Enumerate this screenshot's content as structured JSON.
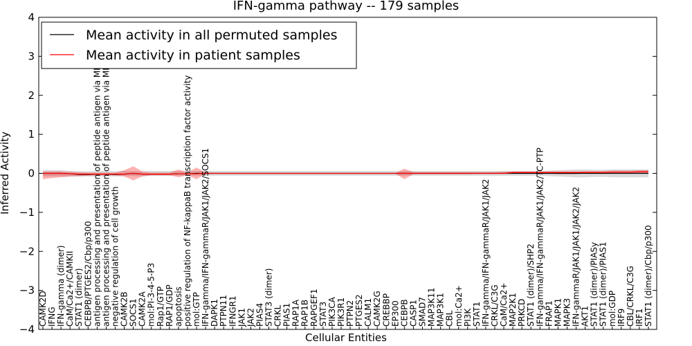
{
  "chart_data": {
    "type": "line",
    "title": "IFN-gamma pathway -- 179 samples",
    "xlabel": "Cellular Entities",
    "ylabel": "Inferred Activity",
    "ylim": [
      -4,
      4
    ],
    "yticks": [
      -4,
      -3,
      -2,
      -1,
      0,
      1,
      2,
      3,
      4
    ],
    "legend_position": "top-left",
    "categories": [
      "CAMK2D",
      "IFNG",
      "IFN-gamma (dimer)",
      "CaM/Ca2+/CAMKII",
      "STAT1 (dimer)",
      "CEBPB/PTGES2/Cbp/p300",
      "antigen processing and presentation of peptide antigen via MHC class I",
      "antigen processing and presentation of peptide antigen via MHC class II",
      "negative regulation of cell growth",
      "CAMK2B",
      "SOCS1",
      "CAMK2A",
      "mol:PI-3-4-5-P3",
      "Rap1/GTP",
      "RAP1/GDP",
      "apoptosis",
      "positive regulation of NF-kappaB transcription factor activity",
      "mol:GTP",
      "IFN-gamma/IFN-gammaR/JAK1/JAK2/SOCS1",
      "DAPK1",
      "PTPN11",
      "IFNGR1",
      "JAK1",
      "JAK2",
      "PIAS4",
      "STAT3 (dimer)",
      "CRKL",
      "PIAS1",
      "RAP1A",
      "RAP1B",
      "RAPGEF1",
      "STAT3",
      "PIK3CA",
      "PIK3R1",
      "PTPN2",
      "PTGES2",
      "CALM1",
      "CAMK2G",
      "CREBBP",
      "EP300",
      "CEBPB",
      "CASP1",
      "SMAD7",
      "MAP3K11",
      "MAP3K1",
      "CBL",
      "mol:Ca2+",
      "PI3K",
      "STAT1",
      "IFN-gamma/IFN-gammaR/JAK1/JAK2",
      "CRKL/C3G",
      "CaM/Ca2+",
      "MAP2K1",
      "PRKCD",
      "STAT1 (dimer)/SHP2",
      "IFN-gamma/IFN-gammaR/JAK1/JAK2/TC-PTP",
      "FRAP1",
      "MAPK1",
      "MAPK3",
      "IFN-gammaR/JAK1/JAK1/JAK2/JAK2",
      "AKT1",
      "STAT1 (dimer)/PIASy",
      "STAT1 (dimer)/PIAS1",
      "mol:GDP",
      "IRF9",
      "CBL/CRKL/C3G",
      "IRF1",
      "STAT1 (dimer)/Cbp/p300"
    ],
    "series": [
      {
        "name": "Mean activity in all permuted samples",
        "color": "#000000",
        "values": [
          0.0,
          0.0,
          0.0,
          -0.01,
          -0.03,
          -0.03,
          -0.02,
          -0.02,
          -0.03,
          -0.02,
          0.0,
          -0.02,
          -0.02,
          -0.02,
          -0.02,
          -0.01,
          -0.01,
          0.0,
          0.0,
          0.0,
          0.0,
          0.0,
          0.0,
          0.0,
          0.0,
          0.0,
          0.0,
          0.0,
          0.0,
          0.0,
          0.0,
          0.0,
          0.0,
          0.0,
          0.0,
          0.0,
          0.0,
          0.0,
          0.0,
          0.0,
          0.0,
          0.0,
          0.0,
          0.0,
          0.0,
          0.0,
          0.0,
          0.0,
          0.0,
          0.0,
          0.0,
          0.0,
          0.0,
          0.0,
          0.0,
          0.0,
          0.0,
          0.0,
          0.0,
          0.0,
          0.0,
          0.0,
          0.0,
          0.0,
          0.0,
          0.0,
          0.0,
          0.0
        ],
        "band_lower": [
          -0.08,
          -0.08,
          -0.08,
          -0.08,
          -0.08,
          -0.08,
          -0.08,
          -0.08,
          -0.08,
          -0.07,
          -0.07,
          -0.07,
          -0.06,
          -0.06,
          -0.06,
          -0.06,
          -0.06,
          -0.06,
          -0.06,
          -0.06,
          -0.06,
          -0.06,
          -0.06,
          -0.06,
          -0.06,
          -0.06,
          -0.06,
          -0.06,
          -0.06,
          -0.06,
          -0.06,
          -0.06,
          -0.06,
          -0.06,
          -0.06,
          -0.06,
          -0.06,
          -0.06,
          -0.06,
          -0.06,
          -0.06,
          -0.06,
          -0.06,
          -0.06,
          -0.06,
          -0.06,
          -0.06,
          -0.06,
          -0.06,
          -0.06,
          -0.06,
          -0.06,
          -0.06,
          -0.06,
          -0.06,
          -0.06,
          -0.07,
          -0.08,
          -0.09,
          -0.1,
          -0.1,
          -0.09,
          -0.09,
          -0.1,
          -0.1,
          -0.1,
          -0.1,
          -0.1
        ],
        "band_upper": [
          0.08,
          0.08,
          0.08,
          0.06,
          0.05,
          0.05,
          0.06,
          0.06,
          0.05,
          0.06,
          0.06,
          0.05,
          0.06,
          0.06,
          0.06,
          0.06,
          0.06,
          0.06,
          0.06,
          0.06,
          0.06,
          0.06,
          0.06,
          0.06,
          0.06,
          0.06,
          0.06,
          0.06,
          0.06,
          0.06,
          0.06,
          0.06,
          0.06,
          0.06,
          0.06,
          0.06,
          0.06,
          0.06,
          0.06,
          0.06,
          0.06,
          0.06,
          0.06,
          0.06,
          0.06,
          0.06,
          0.06,
          0.06,
          0.06,
          0.06,
          0.06,
          0.06,
          0.06,
          0.06,
          0.06,
          0.06,
          0.07,
          0.08,
          0.09,
          0.1,
          0.1,
          0.09,
          0.09,
          0.1,
          0.1,
          0.1,
          0.1,
          0.1
        ]
      },
      {
        "name": "Mean activity in patient samples",
        "color": "#ff0000",
        "values": [
          0.0,
          0.0,
          0.0,
          -0.01,
          -0.02,
          -0.02,
          -0.02,
          -0.02,
          -0.02,
          -0.02,
          0.0,
          -0.02,
          -0.02,
          -0.02,
          -0.02,
          -0.01,
          -0.01,
          -0.01,
          0.0,
          0.0,
          0.0,
          0.0,
          0.0,
          0.0,
          0.0,
          0.0,
          0.0,
          0.0,
          0.0,
          0.0,
          0.0,
          0.0,
          0.0,
          0.0,
          0.0,
          0.0,
          0.0,
          0.0,
          0.0,
          0.0,
          0.0,
          0.0,
          0.0,
          0.0,
          0.0,
          0.0,
          0.0,
          0.0,
          0.0,
          0.0,
          0.0,
          0.0,
          0.02,
          0.02,
          0.02,
          0.02,
          0.02,
          0.02,
          0.02,
          0.02,
          0.02,
          0.02,
          0.02,
          0.03,
          0.03,
          0.03,
          0.04,
          0.04
        ],
        "band_lower": [
          -0.15,
          -0.12,
          -0.1,
          -0.08,
          -0.07,
          -0.06,
          -0.05,
          -0.05,
          -0.05,
          -0.08,
          -0.18,
          -0.08,
          -0.05,
          -0.05,
          -0.05,
          -0.1,
          -0.05,
          -0.15,
          -0.02,
          -0.01,
          -0.01,
          -0.01,
          -0.01,
          -0.01,
          -0.01,
          -0.01,
          -0.01,
          -0.01,
          -0.01,
          -0.01,
          -0.01,
          -0.01,
          -0.01,
          -0.01,
          -0.01,
          -0.01,
          -0.01,
          -0.01,
          -0.01,
          -0.01,
          -0.15,
          -0.02,
          -0.02,
          -0.02,
          -0.02,
          -0.02,
          -0.02,
          -0.02,
          -0.01,
          -0.01,
          -0.01,
          -0.01,
          -0.01,
          -0.01,
          -0.01,
          -0.01,
          -0.01,
          -0.02,
          -0.02,
          -0.02,
          0.0,
          0.0,
          0.0,
          0.0,
          0.0,
          0.0,
          0.0,
          0.0
        ],
        "band_upper": [
          0.05,
          0.05,
          0.05,
          0.04,
          0.03,
          0.02,
          0.02,
          0.02,
          0.02,
          0.08,
          0.18,
          0.05,
          0.02,
          0.02,
          0.02,
          0.1,
          0.02,
          0.15,
          0.02,
          0.01,
          0.01,
          0.01,
          0.01,
          0.01,
          0.01,
          0.01,
          0.01,
          0.01,
          0.01,
          0.01,
          0.01,
          0.01,
          0.01,
          0.01,
          0.01,
          0.01,
          0.01,
          0.01,
          0.01,
          0.01,
          0.12,
          0.03,
          0.03,
          0.03,
          0.03,
          0.03,
          0.03,
          0.03,
          0.03,
          0.03,
          0.03,
          0.04,
          0.05,
          0.05,
          0.05,
          0.05,
          0.05,
          0.05,
          0.05,
          0.05,
          0.06,
          0.06,
          0.06,
          0.07,
          0.07,
          0.07,
          0.08,
          0.08
        ]
      }
    ]
  }
}
